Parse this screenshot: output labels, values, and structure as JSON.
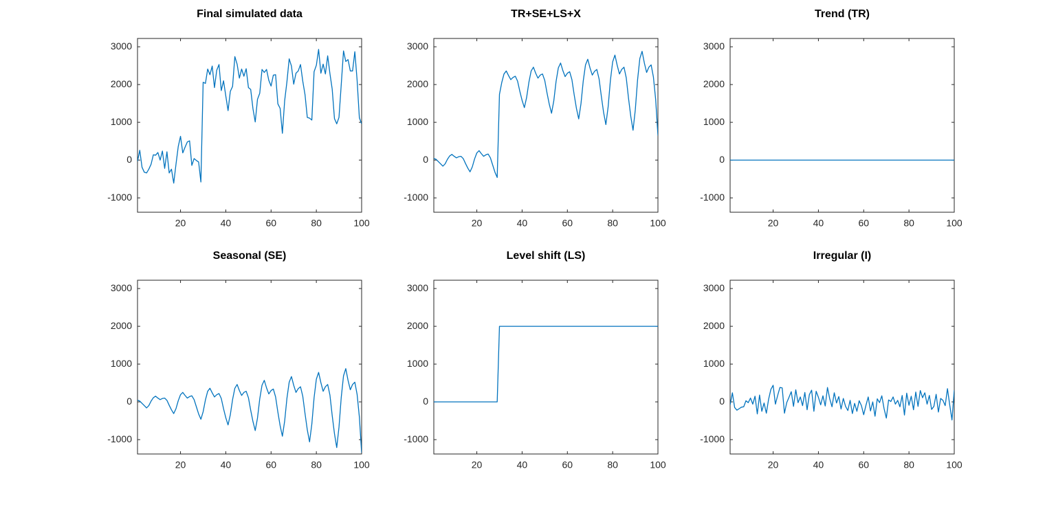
{
  "chart_data": [
    {
      "type": "line",
      "title": "Final simulated data",
      "color": "#0072bd",
      "xlim": [
        1,
        100
      ],
      "xticks": [
        20,
        40,
        60,
        80,
        100
      ],
      "ylim": [
        -1380,
        3220
      ],
      "yticks": [
        -1000,
        0,
        1000,
        2000,
        3000
      ],
      "x": [
        1,
        2,
        3,
        4,
        5,
        6,
        7,
        8,
        9,
        10,
        11,
        12,
        13,
        14,
        15,
        16,
        17,
        18,
        19,
        20,
        21,
        22,
        23,
        24,
        25,
        26,
        27,
        28,
        29,
        30,
        31,
        32,
        33,
        34,
        35,
        36,
        37,
        38,
        39,
        40,
        41,
        42,
        43,
        44,
        45,
        46,
        47,
        48,
        49,
        50,
        51,
        52,
        53,
        54,
        55,
        56,
        57,
        58,
        59,
        60,
        61,
        62,
        63,
        64,
        65,
        66,
        67,
        68,
        69,
        70,
        71,
        72,
        73,
        74,
        75,
        76,
        77,
        78,
        79,
        80,
        81,
        82,
        83,
        84,
        85,
        86,
        87,
        88,
        89,
        90,
        91,
        92,
        93,
        94,
        95,
        96,
        97,
        98,
        99,
        100
      ],
      "values": [
        -35,
        260,
        -190,
        -320,
        -340,
        -240,
        -110,
        140,
        130,
        200,
        0,
        240,
        -220,
        220,
        -340,
        -240,
        -610,
        -110,
        360,
        630,
        190,
        340,
        480,
        510,
        -140,
        40,
        -10,
        -50,
        -580,
        2060,
        2030,
        2410,
        2260,
        2490,
        1920,
        2380,
        2530,
        1840,
        2100,
        1700,
        1310,
        1820,
        1950,
        2740,
        2540,
        2170,
        2410,
        2220,
        2420,
        1920,
        1870,
        1360,
        1010,
        1610,
        1770,
        2400,
        2320,
        2400,
        2110,
        1960,
        2250,
        2260,
        1490,
        1370,
        710,
        1570,
        2070,
        2680,
        2490,
        2010,
        2300,
        2360,
        2530,
        2090,
        1730,
        1130,
        1110,
        1060,
        2340,
        2510,
        2930,
        2300,
        2540,
        2280,
        2760,
        2290,
        1880,
        1100,
        960,
        1130,
        2000,
        2890,
        2610,
        2660,
        2360,
        2360,
        2870,
        2120,
        1120,
        960
      ]
    },
    {
      "type": "line",
      "title": "TR+SE+LS+X",
      "color": "#0072bd",
      "xlim": [
        1,
        100
      ],
      "xticks": [
        20,
        40,
        60,
        80,
        100
      ],
      "ylim": [
        -1380,
        3220
      ],
      "yticks": [
        -1000,
        0,
        1000,
        2000,
        3000
      ],
      "x": [
        1,
        2,
        3,
        4,
        5,
        6,
        7,
        8,
        9,
        10,
        11,
        12,
        13,
        14,
        15,
        16,
        17,
        18,
        19,
        20,
        21,
        22,
        23,
        24,
        25,
        26,
        27,
        28,
        29,
        30,
        31,
        32,
        33,
        34,
        35,
        36,
        37,
        38,
        39,
        40,
        41,
        42,
        43,
        44,
        45,
        46,
        47,
        48,
        49,
        50,
        51,
        52,
        53,
        54,
        55,
        56,
        57,
        58,
        59,
        60,
        61,
        62,
        63,
        64,
        65,
        66,
        67,
        68,
        69,
        70,
        71,
        72,
        73,
        74,
        75,
        76,
        77,
        78,
        79,
        80,
        81,
        82,
        83,
        84,
        85,
        86,
        87,
        88,
        89,
        90,
        91,
        92,
        93,
        94,
        95,
        96,
        97,
        98,
        99,
        100
      ],
      "values": [
        45,
        20,
        -40,
        -100,
        -160,
        -100,
        20,
        110,
        150,
        100,
        60,
        90,
        100,
        40,
        -90,
        -210,
        -310,
        -180,
        30,
        190,
        250,
        170,
        100,
        140,
        160,
        60,
        -130,
        -320,
        -460,
        1740,
        2050,
        2280,
        2360,
        2240,
        2130,
        2190,
        2220,
        2090,
        1820,
        1580,
        1390,
        1660,
        2060,
        2360,
        2460,
        2300,
        2170,
        2250,
        2280,
        2110,
        1780,
        1480,
        1240,
        1570,
        2080,
        2440,
        2570,
        2370,
        2210,
        2300,
        2340,
        2130,
        1730,
        1370,
        1090,
        1490,
        2090,
        2520,
        2670,
        2440,
        2250,
        2350,
        2400,
        2150,
        1690,
        1260,
        940,
        1410,
        2110,
        2600,
        2780,
        2510,
        2280,
        2400,
        2460,
        2180,
        1640,
        1160,
        790,
        1330,
        2120,
        2690,
        2880,
        2570,
        2320,
        2460,
        2520,
        2200,
        1600,
        650
      ]
    },
    {
      "type": "line",
      "title": "Trend (TR)",
      "color": "#0072bd",
      "xlim": [
        1,
        100
      ],
      "xticks": [
        20,
        40,
        60,
        80,
        100
      ],
      "ylim": [
        -1380,
        3220
      ],
      "yticks": [
        -1000,
        0,
        1000,
        2000,
        3000
      ],
      "x": [
        1,
        2,
        3,
        4,
        5,
        6,
        7,
        8,
        9,
        10,
        11,
        12,
        13,
        14,
        15,
        16,
        17,
        18,
        19,
        20,
        21,
        22,
        23,
        24,
        25,
        26,
        27,
        28,
        29,
        30,
        31,
        32,
        33,
        34,
        35,
        36,
        37,
        38,
        39,
        40,
        41,
        42,
        43,
        44,
        45,
        46,
        47,
        48,
        49,
        50,
        51,
        52,
        53,
        54,
        55,
        56,
        57,
        58,
        59,
        60,
        61,
        62,
        63,
        64,
        65,
        66,
        67,
        68,
        69,
        70,
        71,
        72,
        73,
        74,
        75,
        76,
        77,
        78,
        79,
        80,
        81,
        82,
        83,
        84,
        85,
        86,
        87,
        88,
        89,
        90,
        91,
        92,
        93,
        94,
        95,
        96,
        97,
        98,
        99,
        100
      ],
      "values": [
        0,
        0,
        0,
        0,
        0,
        0,
        0,
        0,
        0,
        0,
        0,
        0,
        0,
        0,
        0,
        0,
        0,
        0,
        0,
        0,
        0,
        0,
        0,
        0,
        0,
        0,
        0,
        0,
        0,
        0,
        0,
        0,
        0,
        0,
        0,
        0,
        0,
        0,
        0,
        0,
        0,
        0,
        0,
        0,
        0,
        0,
        0,
        0,
        0,
        0,
        0,
        0,
        0,
        0,
        0,
        0,
        0,
        0,
        0,
        0,
        0,
        0,
        0,
        0,
        0,
        0,
        0,
        0,
        0,
        0,
        0,
        0,
        0,
        0,
        0,
        0,
        0,
        0,
        0,
        0,
        0,
        0,
        0,
        0,
        0,
        0,
        0,
        0,
        0,
        0,
        0,
        0,
        0,
        0,
        0,
        0,
        0,
        0,
        0,
        0
      ]
    },
    {
      "type": "line",
      "title": "Seasonal (SE)",
      "color": "#0072bd",
      "xlim": [
        1,
        100
      ],
      "xticks": [
        20,
        40,
        60,
        80,
        100
      ],
      "ylim": [
        -1380,
        3220
      ],
      "yticks": [
        -1000,
        0,
        1000,
        2000,
        3000
      ],
      "x": [
        1,
        2,
        3,
        4,
        5,
        6,
        7,
        8,
        9,
        10,
        11,
        12,
        13,
        14,
        15,
        16,
        17,
        18,
        19,
        20,
        21,
        22,
        23,
        24,
        25,
        26,
        27,
        28,
        29,
        30,
        31,
        32,
        33,
        34,
        35,
        36,
        37,
        38,
        39,
        40,
        41,
        42,
        43,
        44,
        45,
        46,
        47,
        48,
        49,
        50,
        51,
        52,
        53,
        54,
        55,
        56,
        57,
        58,
        59,
        60,
        61,
        62,
        63,
        64,
        65,
        66,
        67,
        68,
        69,
        70,
        71,
        72,
        73,
        74,
        75,
        76,
        77,
        78,
        79,
        80,
        81,
        82,
        83,
        84,
        85,
        86,
        87,
        88,
        89,
        90,
        91,
        92,
        93,
        94,
        95,
        96,
        97,
        98,
        99,
        100
      ],
      "values": [
        45,
        20,
        -40,
        -100,
        -160,
        -100,
        20,
        110,
        150,
        100,
        60,
        90,
        100,
        40,
        -90,
        -210,
        -310,
        -180,
        30,
        190,
        250,
        170,
        100,
        140,
        160,
        60,
        -130,
        -320,
        -460,
        -260,
        50,
        280,
        360,
        240,
        130,
        190,
        220,
        90,
        -180,
        -420,
        -610,
        -340,
        60,
        360,
        460,
        300,
        170,
        250,
        280,
        110,
        -220,
        -520,
        -760,
        -430,
        80,
        440,
        570,
        370,
        210,
        300,
        340,
        130,
        -270,
        -630,
        -910,
        -510,
        90,
        520,
        670,
        440,
        250,
        350,
        400,
        150,
        -310,
        -740,
        -1060,
        -590,
        110,
        600,
        780,
        510,
        280,
        400,
        460,
        180,
        -360,
        -840,
        -1210,
        -670,
        120,
        690,
        880,
        570,
        320,
        460,
        520,
        200,
        -400,
        -1350
      ]
    },
    {
      "type": "line",
      "title": "Level shift (LS)",
      "color": "#0072bd",
      "xlim": [
        1,
        100
      ],
      "xticks": [
        20,
        40,
        60,
        80,
        100
      ],
      "ylim": [
        -1380,
        3220
      ],
      "yticks": [
        -1000,
        0,
        1000,
        2000,
        3000
      ],
      "x": [
        1,
        2,
        3,
        4,
        5,
        6,
        7,
        8,
        9,
        10,
        11,
        12,
        13,
        14,
        15,
        16,
        17,
        18,
        19,
        20,
        21,
        22,
        23,
        24,
        25,
        26,
        27,
        28,
        29,
        30,
        31,
        32,
        33,
        34,
        35,
        36,
        37,
        38,
        39,
        40,
        41,
        42,
        43,
        44,
        45,
        46,
        47,
        48,
        49,
        50,
        51,
        52,
        53,
        54,
        55,
        56,
        57,
        58,
        59,
        60,
        61,
        62,
        63,
        64,
        65,
        66,
        67,
        68,
        69,
        70,
        71,
        72,
        73,
        74,
        75,
        76,
        77,
        78,
        79,
        80,
        81,
        82,
        83,
        84,
        85,
        86,
        87,
        88,
        89,
        90,
        91,
        92,
        93,
        94,
        95,
        96,
        97,
        98,
        99,
        100
      ],
      "values": [
        0,
        0,
        0,
        0,
        0,
        0,
        0,
        0,
        0,
        0,
        0,
        0,
        0,
        0,
        0,
        0,
        0,
        0,
        0,
        0,
        0,
        0,
        0,
        0,
        0,
        0,
        0,
        0,
        0,
        2000,
        2000,
        2000,
        2000,
        2000,
        2000,
        2000,
        2000,
        2000,
        2000,
        2000,
        2000,
        2000,
        2000,
        2000,
        2000,
        2000,
        2000,
        2000,
        2000,
        2000,
        2000,
        2000,
        2000,
        2000,
        2000,
        2000,
        2000,
        2000,
        2000,
        2000,
        2000,
        2000,
        2000,
        2000,
        2000,
        2000,
        2000,
        2000,
        2000,
        2000,
        2000,
        2000,
        2000,
        2000,
        2000,
        2000,
        2000,
        2000,
        2000,
        2000,
        2000,
        2000,
        2000,
        2000,
        2000,
        2000,
        2000,
        2000,
        2000,
        2000,
        2000,
        2000,
        2000,
        2000,
        2000,
        2000,
        2000,
        2000,
        2000,
        2000
      ]
    },
    {
      "type": "line",
      "title": "Irregular (I)",
      "color": "#0072bd",
      "xlim": [
        1,
        100
      ],
      "xticks": [
        20,
        40,
        60,
        80,
        100
      ],
      "ylim": [
        -1380,
        3220
      ],
      "yticks": [
        -1000,
        0,
        1000,
        2000,
        3000
      ],
      "x": [
        1,
        2,
        3,
        4,
        5,
        6,
        7,
        8,
        9,
        10,
        11,
        12,
        13,
        14,
        15,
        16,
        17,
        18,
        19,
        20,
        21,
        22,
        23,
        24,
        25,
        26,
        27,
        28,
        29,
        30,
        31,
        32,
        33,
        34,
        35,
        36,
        37,
        38,
        39,
        40,
        41,
        42,
        43,
        44,
        45,
        46,
        47,
        48,
        49,
        50,
        51,
        52,
        53,
        54,
        55,
        56,
        57,
        58,
        59,
        60,
        61,
        62,
        63,
        64,
        65,
        66,
        67,
        68,
        69,
        70,
        71,
        72,
        73,
        74,
        75,
        76,
        77,
        78,
        79,
        80,
        81,
        82,
        83,
        84,
        85,
        86,
        87,
        88,
        89,
        90,
        91,
        92,
        93,
        94,
        95,
        96,
        97,
        98,
        99,
        100
      ],
      "values": [
        -80,
        240,
        -150,
        -220,
        -180,
        -140,
        -130,
        30,
        -20,
        100,
        -60,
        150,
        -320,
        180,
        -250,
        -30,
        -300,
        70,
        330,
        440,
        -60,
        170,
        380,
        370,
        -300,
        -20,
        120,
        270,
        -120,
        320,
        -20,
        130,
        -100,
        250,
        -210,
        190,
        310,
        -250,
        280,
        120,
        -80,
        160,
        -110,
        380,
        80,
        -130,
        240,
        -30,
        140,
        -190,
        90,
        -120,
        -230,
        40,
        -310,
        -40,
        -250,
        30,
        -100,
        -340,
        -90,
        130,
        -240,
        0,
        -380,
        80,
        -20,
        160,
        -180,
        -430,
        50,
        10,
        130,
        -60,
        40,
        -130,
        170,
        -350,
        230,
        -90,
        150,
        -210,
        260,
        -120,
        300,
        110,
        240,
        -60,
        170,
        -200,
        -120,
        200,
        -270,
        90,
        40,
        -100,
        350,
        -80,
        -480,
        310
      ]
    }
  ]
}
